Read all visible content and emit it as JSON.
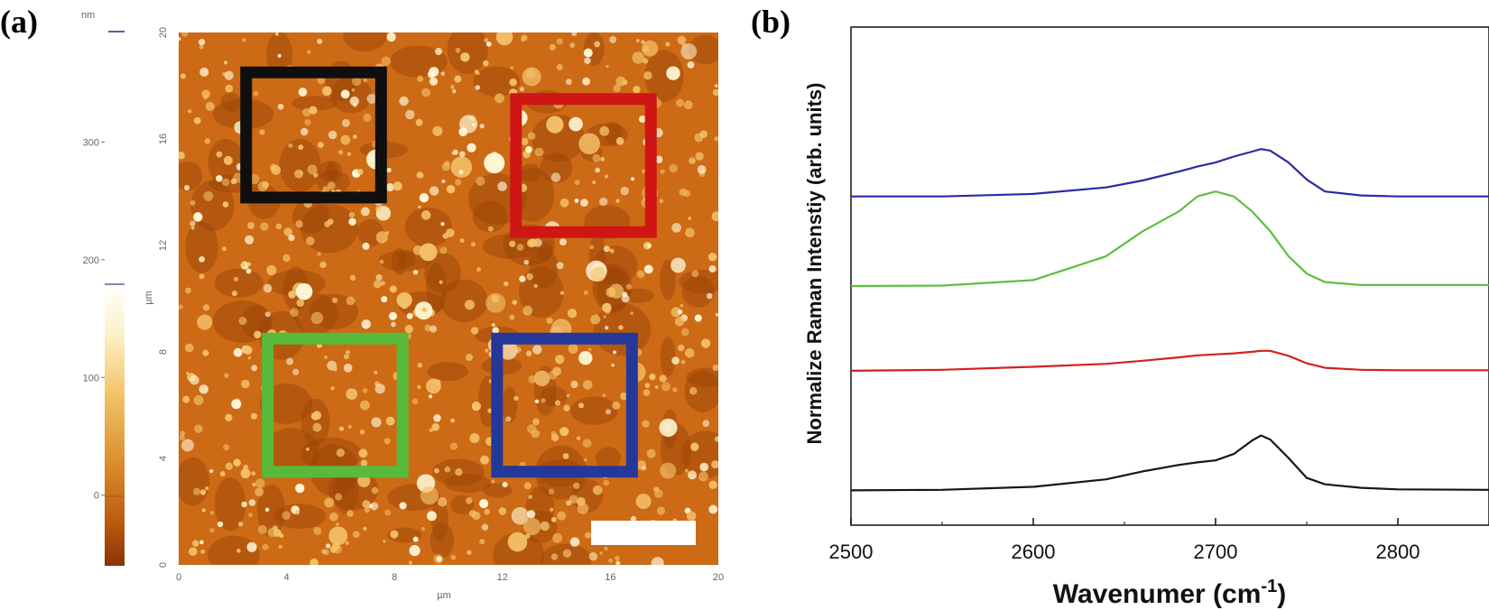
{
  "panels": {
    "a": {
      "label": "(a)"
    },
    "b": {
      "label": "(b)"
    }
  },
  "afm": {
    "colorbar_unit": "nm",
    "colorbar_ticks": [
      "300",
      "200",
      "100",
      "0"
    ],
    "colorbar_tick_values": [
      300,
      200,
      100,
      0
    ],
    "colorbar_range": [
      -60,
      390
    ],
    "x_axis_label": "µm",
    "y_axis_label": "µm",
    "x_ticks": [
      "0",
      "4",
      "8",
      "12",
      "16",
      "20"
    ],
    "y_ticks": [
      "0",
      "4",
      "8",
      "12",
      "16",
      "20"
    ],
    "axis_range_um": [
      0,
      20
    ],
    "colors": {
      "dark": "#9a4206",
      "mid": "#cc6a16",
      "light": "#f4c16a",
      "bright": "#fff6d4"
    },
    "regions": [
      {
        "name": "black",
        "color": "#0f0f0f",
        "x_range_um": [
          2.5,
          7.5
        ],
        "y_range_um": [
          13.8,
          18.5
        ]
      },
      {
        "name": "red",
        "color": "#d01515",
        "x_range_um": [
          12.5,
          17.5
        ],
        "y_range_um": [
          12.5,
          17.5
        ]
      },
      {
        "name": "green",
        "color": "#58b93a",
        "x_range_um": [
          3.3,
          8.3
        ],
        "y_range_um": [
          3.5,
          8.5
        ]
      },
      {
        "name": "blue",
        "color": "#24389a",
        "x_range_um": [
          11.8,
          16.8
        ],
        "y_range_um": [
          3.5,
          8.5
        ]
      }
    ],
    "scale_bar_color": "#ffffff"
  },
  "chart_data": {
    "type": "line",
    "title": "",
    "xlabel": "Wavenumer (cm",
    "xlabel_sup": "-1",
    "xlabel_close": ")",
    "ylabel": "Normalize Raman Intenstiy (arb. units)",
    "xlim": [
      2500,
      2850
    ],
    "ylim": [
      0,
      1.0
    ],
    "x_ticks": [
      "2500",
      "2600",
      "2700",
      "2800"
    ],
    "x_tick_values": [
      2500,
      2600,
      2700,
      2800
    ],
    "grid": false,
    "legend": "none",
    "x": [
      2500,
      2550,
      2600,
      2640,
      2660,
      2680,
      2690,
      2700,
      2710,
      2720,
      2725,
      2730,
      2740,
      2750,
      2760,
      2780,
      2800,
      2850
    ],
    "series": [
      {
        "name": "blue",
        "color": "#2a2aa8",
        "values": [
          0.66,
          0.66,
          0.665,
          0.678,
          0.692,
          0.71,
          0.72,
          0.728,
          0.74,
          0.75,
          0.755,
          0.752,
          0.728,
          0.694,
          0.67,
          0.662,
          0.66,
          0.66
        ]
      },
      {
        "name": "green",
        "color": "#5cbf3e",
        "values": [
          0.48,
          0.481,
          0.492,
          0.54,
          0.59,
          0.63,
          0.66,
          0.67,
          0.66,
          0.63,
          0.61,
          0.59,
          0.54,
          0.505,
          0.488,
          0.482,
          0.482,
          0.482
        ]
      },
      {
        "name": "red",
        "color": "#d42020",
        "values": [
          0.31,
          0.312,
          0.318,
          0.324,
          0.33,
          0.337,
          0.341,
          0.343,
          0.345,
          0.348,
          0.35,
          0.35,
          0.34,
          0.325,
          0.316,
          0.312,
          0.311,
          0.311
        ]
      },
      {
        "name": "black",
        "color": "#161616",
        "values": [
          0.07,
          0.071,
          0.077,
          0.092,
          0.108,
          0.121,
          0.126,
          0.13,
          0.143,
          0.17,
          0.18,
          0.172,
          0.135,
          0.095,
          0.082,
          0.075,
          0.072,
          0.071
        ]
      }
    ]
  }
}
